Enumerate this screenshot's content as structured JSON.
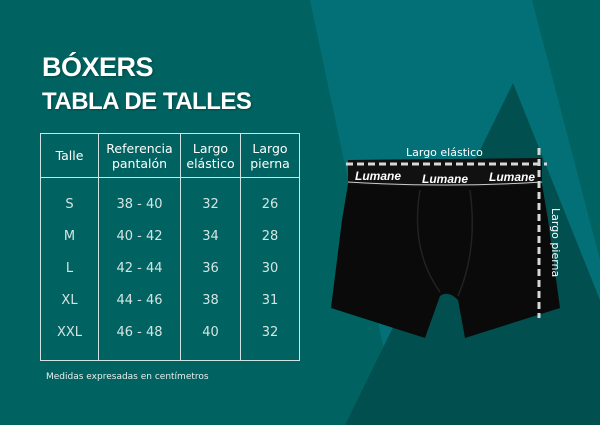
{
  "title": "BÓXERS",
  "subtitle": "TABLA DE TALLES",
  "table": {
    "headers": [
      [
        "Talle"
      ],
      [
        "Referencia",
        "pantalón"
      ],
      [
        "Largo",
        "elástico"
      ],
      [
        "Largo",
        "pierna"
      ]
    ],
    "rows": [
      [
        "S",
        "38 - 40",
        "32",
        "26"
      ],
      [
        "M",
        "40 - 42",
        "34",
        "28"
      ],
      [
        "L",
        "42 - 44",
        "36",
        "30"
      ],
      [
        "XL",
        "44 - 46",
        "38",
        "31"
      ],
      [
        "XXL",
        "46 - 48",
        "40",
        "32"
      ]
    ]
  },
  "note": "Medidas expresadas en centímetros",
  "diagram": {
    "width_label": "Largo elástico",
    "length_label": "Largo pierna",
    "brand": "Lumane"
  },
  "colors": {
    "background": "#016361",
    "accent_light": "#03727a",
    "accent_dark": "#01504f"
  }
}
